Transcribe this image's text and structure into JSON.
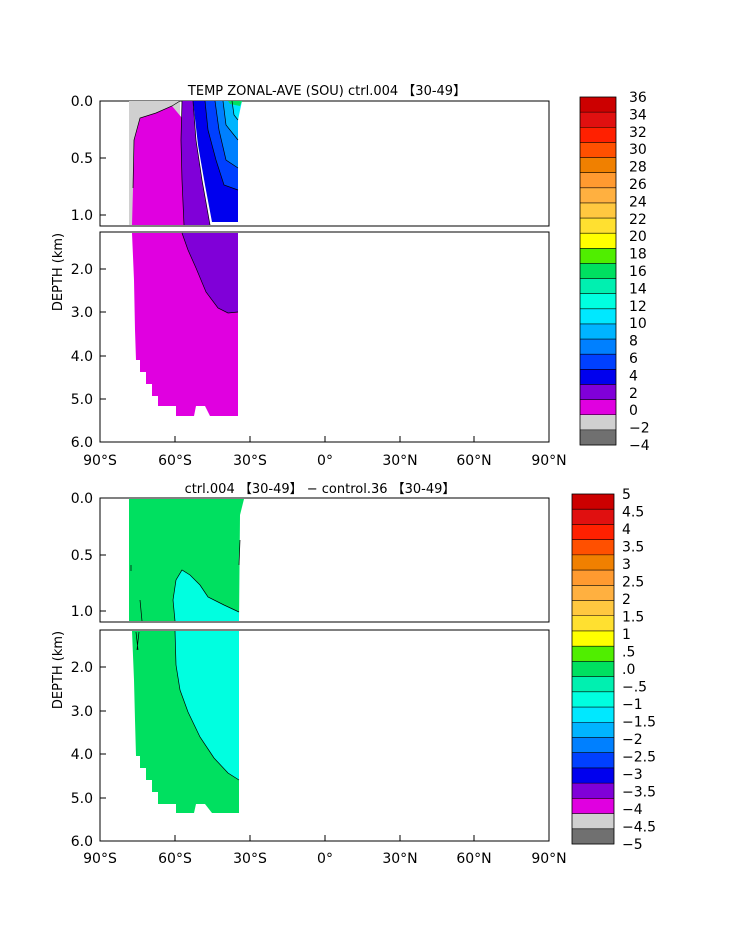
{
  "chart_data": [
    {
      "type": "heatmap",
      "title": "TEMP ZONAL-AVE (SOU) ctrl.004 【30-49】",
      "ylabel": "DEPTH (km)",
      "x_ticks": [
        "90°S",
        "60°S",
        "30°S",
        "0°",
        "30°N",
        "60°N",
        "90°N"
      ],
      "x_range": [
        -90,
        90
      ],
      "y_ticks": [
        "0.0",
        "0.5",
        "1.0",
        "2.0",
        "3.0",
        "4.0",
        "5.0",
        "6.0"
      ],
      "y_range_km": [
        0,
        6
      ],
      "y_break_km": 1.1,
      "colorbar_labels": [
        "36",
        "34",
        "32",
        "30",
        "28",
        "26",
        "24",
        "22",
        "20",
        "18",
        "16",
        "14",
        "12",
        "10",
        "8",
        "6",
        "4",
        "2",
        "0",
        "−2",
        "−4"
      ],
      "colorbar_colors": [
        "#cc0000",
        "#e01010",
        "#ff2000",
        "#ff5000",
        "#f08000",
        "#ff9a30",
        "#ffb040",
        "#ffc840",
        "#ffe030",
        "#ffff00",
        "#50ee00",
        "#00e060",
        "#00f0b0",
        "#00ffe0",
        "#00e8ff",
        "#00b4ff",
        "#0080ff",
        "#0040ff",
        "#0000ee",
        "#8000d8",
        "#e000e0",
        "#d0d0d0",
        "#707070"
      ],
      "data_extent": {
        "lat_min": -77,
        "lat_max": -34,
        "depth_max_km": 5.4
      },
      "fields": [
        {
          "lat_start": -77,
          "lat_end": -62,
          "depth_top_km": 0.0,
          "depth_bottom_km": 0.8,
          "value_range": "below 0"
        },
        {
          "lat_start": -77,
          "lat_end": -48,
          "depth_top_km": 0.1,
          "depth_bottom_km": 5.4,
          "value_range": "0 to 2"
        },
        {
          "lat_start": -59,
          "lat_end": -34,
          "depth_top_km": 0.0,
          "depth_bottom_km": 3.0,
          "value_range": "2 to 4"
        },
        {
          "lat_start": -52,
          "lat_end": -34,
          "depth_top_km": 0.0,
          "depth_bottom_km": 1.1,
          "value_range": "4 to 8"
        },
        {
          "lat_start": -46,
          "lat_end": -34,
          "depth_top_km": 0.0,
          "depth_bottom_km": 0.7,
          "value_range": "8 to 12"
        },
        {
          "lat_start": -40,
          "lat_end": -34,
          "depth_top_km": 0.0,
          "depth_bottom_km": 0.05,
          "value_range": "14 to 18"
        }
      ]
    },
    {
      "type": "heatmap",
      "title": "ctrl.004 【30-49】 − control.36 【30-49】",
      "ylabel": "DEPTH (km)",
      "x_ticks": [
        "90°S",
        "60°S",
        "30°S",
        "0°",
        "30°N",
        "60°N",
        "90°N"
      ],
      "x_range": [
        -90,
        90
      ],
      "y_ticks": [
        "0.0",
        "0.5",
        "1.0",
        "2.0",
        "3.0",
        "4.0",
        "5.0",
        "6.0"
      ],
      "y_range_km": [
        0,
        6
      ],
      "y_break_km": 1.1,
      "colorbar_labels": [
        "5",
        "4.5",
        "4",
        "3.5",
        "3",
        "2.5",
        "2",
        "1.5",
        "1",
        ".5",
        ".0",
        "−.5",
        "−1",
        "−1.5",
        "−2",
        "−2.5",
        "−3",
        "−3.5",
        "−4",
        "−4.5",
        "−5"
      ],
      "colorbar_colors": [
        "#cc0000",
        "#e01010",
        "#ff2000",
        "#ff5000",
        "#f08000",
        "#ff9a30",
        "#ffb040",
        "#ffc840",
        "#ffe030",
        "#ffff00",
        "#50ee00",
        "#00e060",
        "#00f0b0",
        "#00ffe0",
        "#00e8ff",
        "#00b4ff",
        "#0080ff",
        "#0040ff",
        "#0000ee",
        "#8000d8",
        "#e000e0",
        "#d0d0d0",
        "#707070"
      ],
      "data_extent": {
        "lat_min": -77,
        "lat_max": -34,
        "depth_max_km": 5.4
      },
      "fields": [
        {
          "lat_start": -77,
          "lat_end": -34,
          "depth_top_km": 0.0,
          "depth_bottom_km": 5.4,
          "value_range": "0 to .5"
        },
        {
          "lat_start": -60,
          "lat_end": -34,
          "depth_top_km": 0.65,
          "depth_bottom_km": 5.0,
          "value_range": "−.5 to 0"
        }
      ]
    }
  ]
}
